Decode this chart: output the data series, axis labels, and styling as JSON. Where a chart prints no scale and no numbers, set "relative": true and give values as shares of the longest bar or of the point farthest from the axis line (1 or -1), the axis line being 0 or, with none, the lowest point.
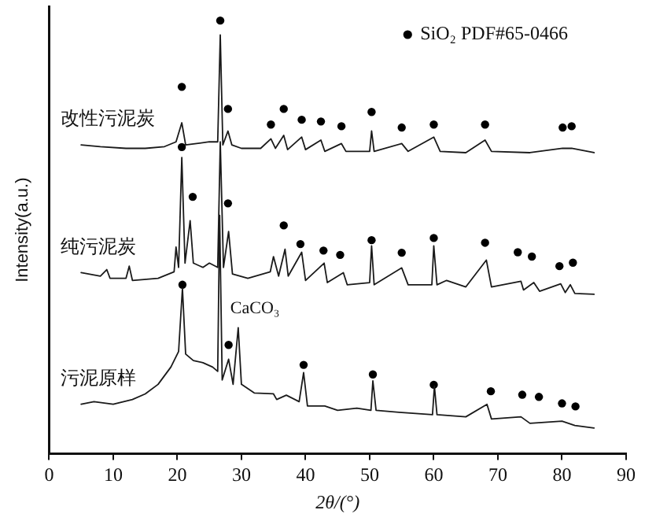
{
  "chart_data": {
    "type": "line",
    "relative": true,
    "xlabel": "2θ/(°)",
    "ylabel": "Intensity(a.u.)",
    "xlim": [
      0,
      90
    ],
    "xticks": [
      0,
      10,
      20,
      30,
      40,
      50,
      60,
      70,
      80,
      90
    ],
    "legend": "top right",
    "annotations": [
      {
        "text": "CaCO₃",
        "x": 29.5,
        "y": 0.291
      }
    ],
    "series": [
      {
        "name": "改性污泥炭",
        "type": "line",
        "marker": "none",
        "color": "#1a1a1a",
        "x": [
          5,
          8,
          12,
          15,
          18,
          19.8,
          20.7,
          21.3,
          23,
          25,
          26.3,
          26.7,
          27.1,
          27.9,
          28.5,
          30,
          33,
          34.6,
          35.3,
          36.6,
          37.2,
          39.4,
          40,
          42.4,
          43,
          45.6,
          46.3,
          50,
          50.3,
          50.7,
          55,
          56,
          60,
          61,
          65,
          68,
          69,
          75,
          80.1,
          81.5,
          85
        ],
        "values": [
          0.713,
          0.709,
          0.705,
          0.705,
          0.709,
          0.72,
          0.764,
          0.713,
          0.716,
          0.72,
          0.72,
          0.967,
          0.713,
          0.745,
          0.713,
          0.705,
          0.705,
          0.727,
          0.705,
          0.735,
          0.702,
          0.731,
          0.702,
          0.724,
          0.698,
          0.716,
          0.698,
          0.698,
          0.745,
          0.698,
          0.716,
          0.698,
          0.731,
          0.698,
          0.695,
          0.724,
          0.698,
          0.695,
          0.705,
          0.705,
          0.695
        ]
      },
      {
        "name": "纯污泥炭",
        "type": "line",
        "marker": "none",
        "color": "#1a1a1a",
        "x": [
          5,
          8,
          9,
          9.5,
          12,
          12.5,
          13,
          17,
          19.5,
          19.8,
          20.2,
          20.7,
          21.2,
          22,
          22.5,
          24,
          25,
          26.3,
          26.7,
          27.2,
          28,
          28.6,
          31,
          34.5,
          35,
          35.8,
          36.8,
          37.3,
          39.4,
          40,
          42.9,
          43.4,
          45.9,
          46.5,
          50,
          50.3,
          50.7,
          55,
          56,
          59.7,
          60,
          60.5,
          62,
          65,
          68.2,
          69,
          73.6,
          74,
          75.6,
          76.5,
          79.8,
          80.5,
          81.3,
          82,
          85
        ],
        "values": [
          0.418,
          0.41,
          0.425,
          0.405,
          0.405,
          0.433,
          0.4,
          0.405,
          0.42,
          0.477,
          0.43,
          0.684,
          0.44,
          0.538,
          0.44,
          0.43,
          0.44,
          0.43,
          0.72,
          0.43,
          0.513,
          0.415,
          0.405,
          0.42,
          0.455,
          0.41,
          0.472,
          0.41,
          0.465,
          0.4,
          0.44,
          0.395,
          0.418,
          0.39,
          0.395,
          0.48,
          0.39,
          0.429,
          0.39,
          0.39,
          0.48,
          0.39,
          0.4,
          0.385,
          0.447,
          0.385,
          0.398,
          0.378,
          0.395,
          0.375,
          0.392,
          0.372,
          0.39,
          0.37,
          0.368
        ]
      },
      {
        "name": "污泥原样",
        "type": "line",
        "marker": "none",
        "color": "#1a1a1a",
        "x": [
          5,
          7,
          10,
          13,
          15,
          17,
          19,
          20.2,
          20.8,
          21.3,
          22.5,
          24,
          25.5,
          26.3,
          26.6,
          27,
          28,
          28.7,
          29.5,
          30,
          32,
          35,
          35.5,
          37,
          39,
          39.7,
          40.3,
          43,
          45,
          48,
          50.2,
          50.5,
          51,
          55,
          59.8,
          60.1,
          60.5,
          65,
          68.3,
          69,
          73.6,
          75,
          80,
          82,
          85
        ],
        "values": [
          0.114,
          0.12,
          0.114,
          0.125,
          0.138,
          0.16,
          0.2,
          0.236,
          0.382,
          0.23,
          0.215,
          0.21,
          0.2,
          0.19,
          0.55,
          0.17,
          0.218,
          0.16,
          0.291,
          0.16,
          0.14,
          0.138,
          0.125,
          0.135,
          0.12,
          0.187,
          0.11,
          0.11,
          0.1,
          0.105,
          0.1,
          0.168,
          0.1,
          0.095,
          0.09,
          0.156,
          0.09,
          0.085,
          0.114,
          0.08,
          0.085,
          0.07,
          0.075,
          0.065,
          0.059
        ]
      },
      {
        "name": "SiO₂ PDF#65-0466",
        "type": "scatter",
        "marker": "circle",
        "color": "#000000",
        "x": [
          20.7,
          26.7,
          27.9,
          34.6,
          36.6,
          39.4,
          42.4,
          45.6,
          50.3,
          55,
          60,
          68,
          80.1,
          81.5,
          20.7,
          22.4,
          27.9,
          36.6,
          39.2,
          42.8,
          45.4,
          50.3,
          55,
          60,
          68,
          73.1,
          75.3,
          79.6,
          81.7,
          20.8,
          28,
          39.7,
          50.5,
          60,
          68.9,
          73.8,
          76.4,
          80,
          82.1
        ],
        "values": [
          0.847,
          1,
          0.796,
          0.76,
          0.796,
          0.771,
          0.767,
          0.756,
          0.789,
          0.753,
          0.76,
          0.76,
          0.753,
          0.756,
          0.708,
          0.593,
          0.578,
          0.527,
          0.484,
          0.469,
          0.459,
          0.493,
          0.464,
          0.498,
          0.487,
          0.465,
          0.455,
          0.433,
          0.441,
          0.39,
          0.251,
          0.205,
          0.183,
          0.159,
          0.144,
          0.136,
          0.131,
          0.116,
          0.109
        ]
      }
    ]
  }
}
